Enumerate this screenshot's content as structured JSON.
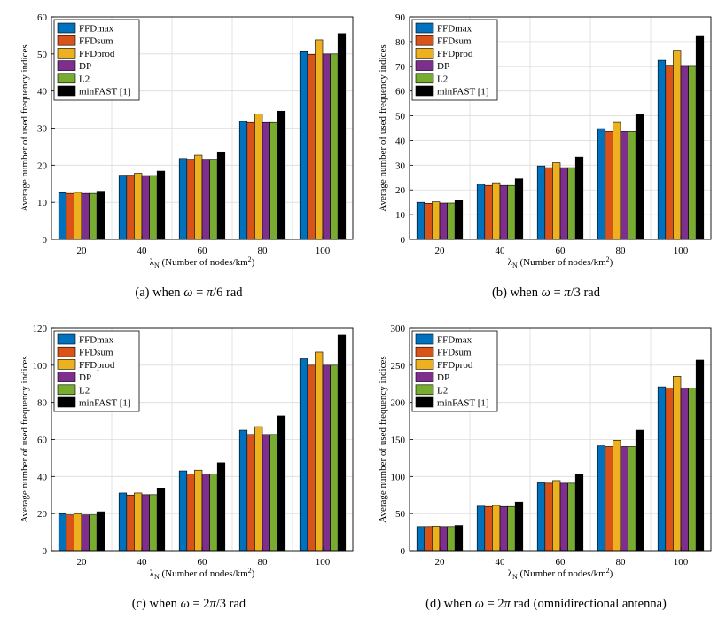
{
  "legend_items": [
    "FFDmax",
    "FFDsum",
    "FFDprod",
    "DP",
    "L2",
    "minFAST [1]"
  ],
  "colors": [
    "#0072BD",
    "#D95319",
    "#EDB120",
    "#7E2F8E",
    "#77AC30",
    "#000000"
  ],
  "chart_data": [
    {
      "type": "bar",
      "title": "",
      "caption": "(a)  when ω = π/6 rad",
      "xlabel": "λN (Number of nodes/km²)",
      "ylabel": "Average number of used frequency indices",
      "categories": [
        "20",
        "40",
        "60",
        "80",
        "100"
      ],
      "ylim": [
        0,
        60
      ],
      "yticks": [
        "0",
        "10",
        "20",
        "30",
        "40",
        "50",
        "60"
      ],
      "legend_position": "top-left",
      "series": [
        {
          "name": "FFDmax",
          "values": [
            12.6,
            17.3,
            21.8,
            31.8,
            50.6
          ]
        },
        {
          "name": "FFDsum",
          "values": [
            12.4,
            17.3,
            21.6,
            31.5,
            49.9
          ]
        },
        {
          "name": "FFDprod",
          "values": [
            12.7,
            17.8,
            22.7,
            33.8,
            53.8
          ]
        },
        {
          "name": "DP",
          "values": [
            12.4,
            17.2,
            21.6,
            31.5,
            50.0
          ]
        },
        {
          "name": "L2",
          "values": [
            12.4,
            17.2,
            21.6,
            31.5,
            50.0
          ]
        },
        {
          "name": "minFAST [1]",
          "values": [
            13.0,
            18.4,
            23.6,
            34.6,
            55.5
          ]
        }
      ]
    },
    {
      "type": "bar",
      "title": "",
      "caption": "(b)  when ω = π/3 rad",
      "xlabel": "λN (Number of nodes/km²)",
      "ylabel": "Average number of used frequency indices",
      "categories": [
        "20",
        "40",
        "60",
        "80",
        "100"
      ],
      "ylim": [
        0,
        90
      ],
      "yticks": [
        "0",
        "10",
        "20",
        "30",
        "40",
        "50",
        "60",
        "70",
        "80",
        "90"
      ],
      "legend_position": "top-left",
      "series": [
        {
          "name": "FFDmax",
          "values": [
            15.0,
            22.3,
            29.7,
            44.8,
            72.4
          ]
        },
        {
          "name": "FFDsum",
          "values": [
            14.6,
            21.8,
            29.0,
            43.6,
            70.4
          ]
        },
        {
          "name": "FFDprod",
          "values": [
            15.2,
            22.9,
            31.0,
            47.3,
            76.5
          ]
        },
        {
          "name": "DP",
          "values": [
            14.7,
            21.8,
            29.0,
            43.6,
            70.3
          ]
        },
        {
          "name": "L2",
          "values": [
            14.7,
            21.8,
            29.0,
            43.6,
            70.3
          ]
        },
        {
          "name": "minFAST [1]",
          "values": [
            16.0,
            24.5,
            33.3,
            50.8,
            82.1
          ]
        }
      ]
    },
    {
      "type": "bar",
      "title": "",
      "caption": "(c)  when ω = 2π/3 rad",
      "xlabel": "λN (Number of nodes/km²)",
      "ylabel": "Average number of used frequency indices",
      "categories": [
        "20",
        "40",
        "60",
        "80",
        "100"
      ],
      "ylim": [
        0,
        120
      ],
      "yticks": [
        "0",
        "20",
        "40",
        "60",
        "80",
        "100",
        "120"
      ],
      "legend_position": "top-left",
      "series": [
        {
          "name": "FFDmax",
          "values": [
            19.9,
            31.1,
            43.0,
            65.0,
            103.5
          ]
        },
        {
          "name": "FFDsum",
          "values": [
            19.3,
            30.0,
            41.3,
            62.7,
            100.0
          ]
        },
        {
          "name": "FFDprod",
          "values": [
            20.0,
            31.1,
            43.4,
            66.9,
            107.1
          ]
        },
        {
          "name": "DP",
          "values": [
            19.3,
            30.2,
            41.3,
            62.7,
            100.0
          ]
        },
        {
          "name": "L2",
          "values": [
            19.3,
            30.2,
            41.3,
            62.7,
            100.0
          ]
        },
        {
          "name": "minFAST [1]",
          "values": [
            21.0,
            33.8,
            47.4,
            72.7,
            116.2
          ]
        }
      ]
    },
    {
      "type": "bar",
      "title": "",
      "caption": "(d)  when ω = 2π rad (omnidirectional antenna)",
      "xlabel": "λN (Number of nodes/km²)",
      "ylabel": "Average number of used frequency indices",
      "categories": [
        "20",
        "40",
        "60",
        "80",
        "100"
      ],
      "ylim": [
        0,
        300
      ],
      "yticks": [
        "0",
        "50",
        "100",
        "150",
        "200",
        "250",
        "300"
      ],
      "legend_position": "top-left",
      "series": [
        {
          "name": "FFDmax",
          "values": [
            32.5,
            60.0,
            91.5,
            141.5,
            221.0
          ]
        },
        {
          "name": "FFDsum",
          "values": [
            32.5,
            59.5,
            91.0,
            140.5,
            219.5
          ]
        },
        {
          "name": "FFDprod",
          "values": [
            33.0,
            61.0,
            94.5,
            149.0,
            235.0
          ]
        },
        {
          "name": "DP",
          "values": [
            32.5,
            59.5,
            91.0,
            140.5,
            219.5
          ]
        },
        {
          "name": "L2",
          "values": [
            32.5,
            59.5,
            91.0,
            140.5,
            219.5
          ]
        },
        {
          "name": "minFAST [1]",
          "values": [
            34.0,
            65.5,
            103.5,
            162.5,
            257.0
          ]
        }
      ]
    }
  ]
}
